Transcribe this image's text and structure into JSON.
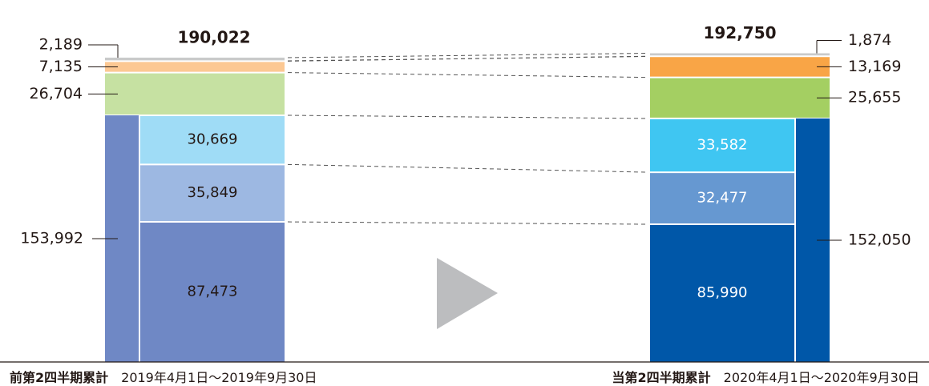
{
  "chart_data": {
    "type": "stacked-bar",
    "periods": [
      {
        "name": "前第2四半期累計",
        "range": "2019年4月1日～2019年9月30日",
        "total": 190022,
        "total_label": "190,022",
        "subtotal": 153992,
        "subtotal_label": "153,992",
        "segments": [
          {
            "value": 87473,
            "label": "87,473",
            "color": "#6f88c5",
            "group": "sub"
          },
          {
            "value": 35849,
            "label": "35,849",
            "color": "#9db8e2",
            "group": "sub"
          },
          {
            "value": 30669,
            "label": "30,669",
            "color": "#9fdcf6",
            "group": "sub"
          },
          {
            "value": 26704,
            "label": "26,704",
            "color": "#c6e1a2",
            "group": "top"
          },
          {
            "value": 7135,
            "label": "7,135",
            "color": "#fcc893",
            "group": "top"
          },
          {
            "value": 2189,
            "label": "2,189",
            "color": "#c9caca",
            "group": "top"
          }
        ]
      },
      {
        "name": "当第2四半期累計",
        "range": "2020年4月1日～2020年9月30日",
        "total": 192750,
        "total_label": "192,750",
        "subtotal": 152050,
        "subtotal_label": "152,050",
        "segments": [
          {
            "value": 85990,
            "label": "85,990",
            "color": "#0057a8",
            "group": "sub"
          },
          {
            "value": 32477,
            "label": "32,477",
            "color": "#6698d1",
            "group": "sub"
          },
          {
            "value": 33582,
            "label": "33,582",
            "color": "#3fc6f2",
            "group": "sub"
          },
          {
            "value": 25655,
            "label": "25,655",
            "color": "#a4cf62",
            "group": "top"
          },
          {
            "value": 13169,
            "label": "13,169",
            "color": "#f9a546",
            "group": "top"
          },
          {
            "value": 1874,
            "label": "1,874",
            "color": "#c9caca",
            "group": "top"
          }
        ]
      }
    ],
    "arrow_color": "#bcbdbf"
  }
}
